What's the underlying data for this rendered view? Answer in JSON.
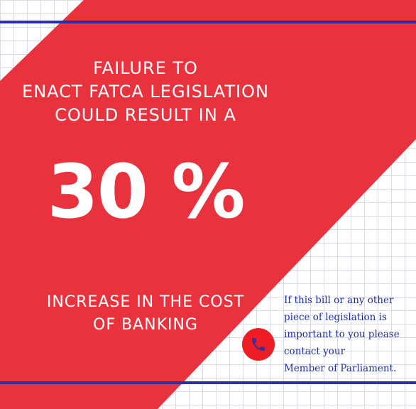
{
  "colors": {
    "red": "#e8333f",
    "blue_line": "#2a2fa3",
    "contact_text": "#1e2f9c",
    "phone_circle": "#ee1c25",
    "phone_icon": "#3b2e8f"
  },
  "headline": {
    "line1": "FAILURE TO",
    "line2": "ENACT FATCA LEGISLATION",
    "line3": "COULD RESULT IN A"
  },
  "big_number": "30 %",
  "subline": {
    "line1": "INCREASE IN THE COST",
    "line2": "OF BANKING"
  },
  "contact": {
    "icon": "phone-icon",
    "line1": "If this bill or any other",
    "line2": "piece of legislation is",
    "line3": "important to you please",
    "line4": "contact your",
    "line5": "Member of Parliament."
  }
}
